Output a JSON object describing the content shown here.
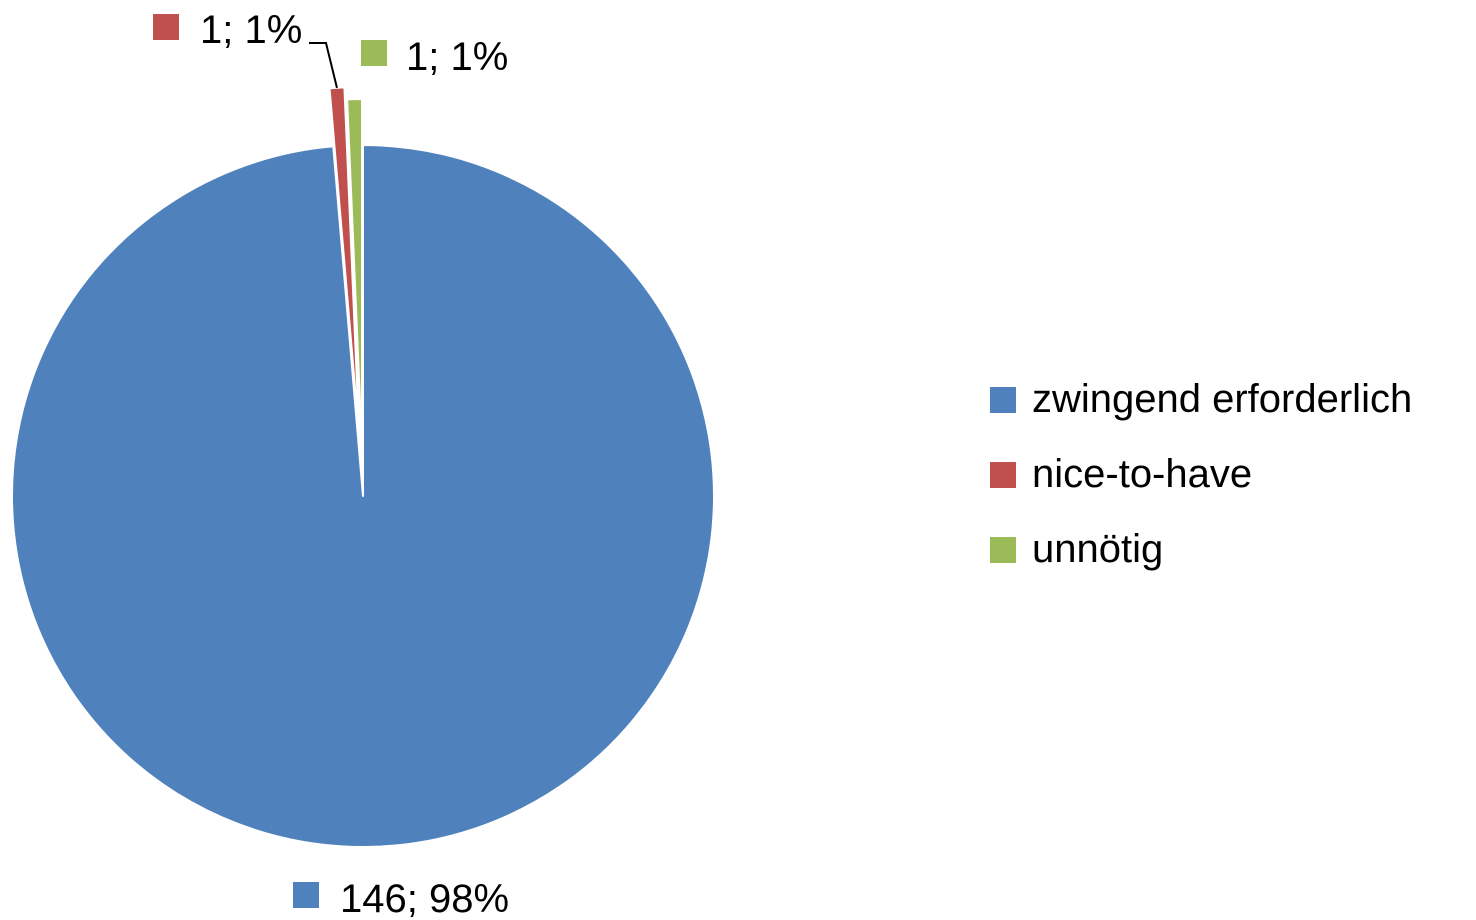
{
  "chart_data": {
    "type": "pie",
    "categories": [
      "zwingend erforderlich",
      "nice-to-have",
      "unnötig"
    ],
    "values": [
      146,
      1,
      1
    ],
    "percent_labels": [
      "98%",
      "1%",
      "1%"
    ],
    "data_labels": [
      "146; 98%",
      "1; 1%",
      "1; 1%"
    ],
    "colors": [
      "#4F81BD",
      "#C0504D",
      "#9BBB59"
    ],
    "exploded": true,
    "legend": "right"
  },
  "legend": {
    "items": [
      {
        "label": "zwingend erforderlich",
        "color": "#4F81BD"
      },
      {
        "label": "nice-to-have",
        "color": "#C0504D"
      },
      {
        "label": "unnötig",
        "color": "#9BBB59"
      }
    ]
  }
}
